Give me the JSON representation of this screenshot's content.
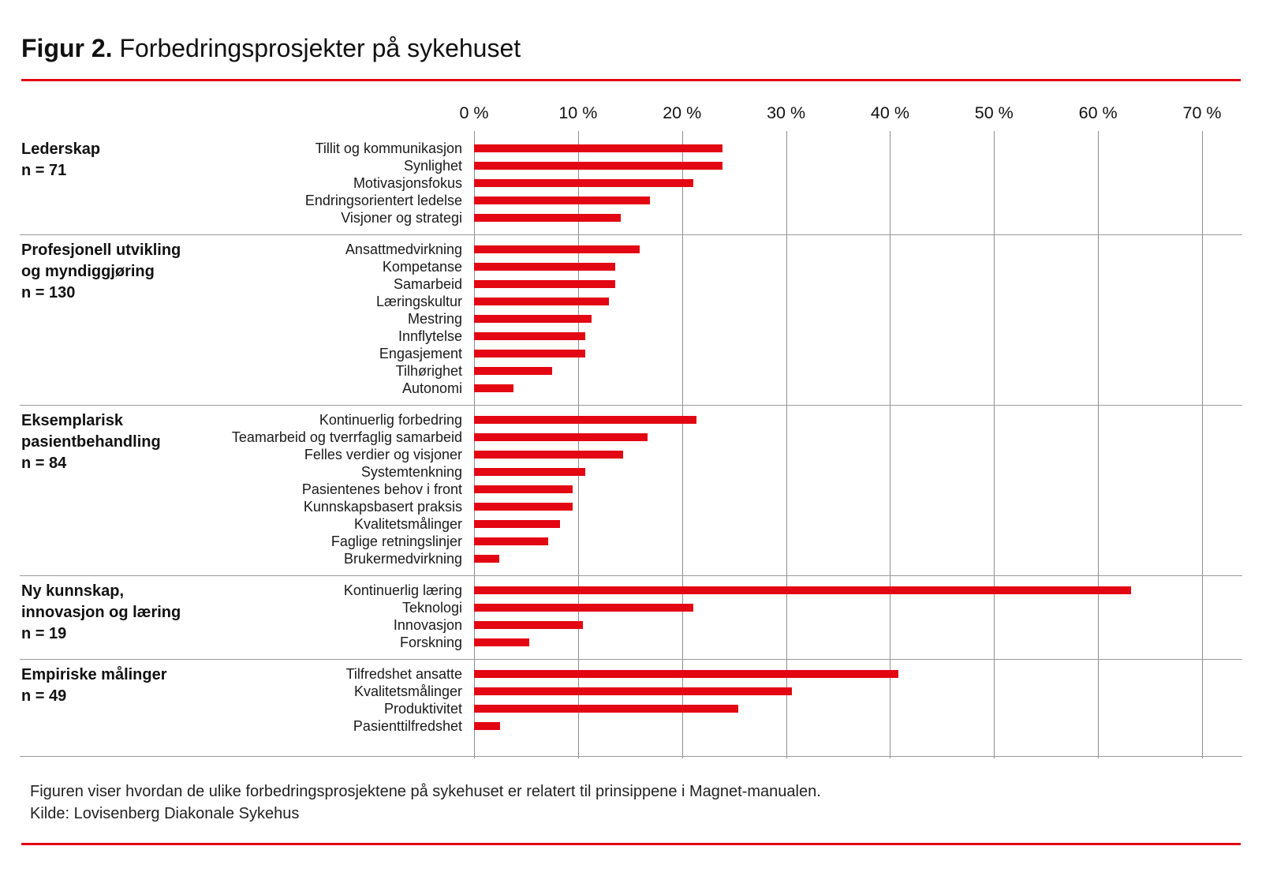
{
  "title": {
    "prefix": "Figur 2.",
    "text": " Forbedringsprosjekter på sykehuset"
  },
  "footer": {
    "line1": "Figuren viser hvordan de ulike forbedringsprosjektene på sykehuset er relatert til prinsippene i Magnet-manualen.",
    "line2": "Kilde: Lovisenberg Diakonale Sykehus"
  },
  "colors": {
    "bar": "#e30613",
    "accent_rule": "#e30613",
    "gridline": "#8f8f8f",
    "separator": "#9a9a9a",
    "text": "#111111"
  },
  "chart_data": {
    "type": "bar",
    "orientation": "horizontal",
    "unit": "%",
    "title": "Figur 2. Forbedringsprosjekter på sykehuset",
    "xlabel": "",
    "ylabel": "",
    "xlim": [
      0,
      70
    ],
    "grid": true,
    "x_ticks": [
      0,
      10,
      20,
      30,
      40,
      50,
      60,
      70
    ],
    "x_tick_labels": [
      "0 %",
      "10 %",
      "20 %",
      "30 %",
      "40 %",
      "50 %",
      "60 %",
      "70 %"
    ],
    "groups": [
      {
        "name": "Lederskap",
        "name_lines": [
          "Lederskap"
        ],
        "n": 71,
        "n_label": "n = 71",
        "items": [
          {
            "label": "Tillit og kommunikasjon",
            "value": 23.9
          },
          {
            "label": "Synlighet",
            "value": 23.9
          },
          {
            "label": "Motivasjonsfokus",
            "value": 21.1
          },
          {
            "label": "Endringsorientert ledelse",
            "value": 16.9
          },
          {
            "label": "Visjoner og strategi",
            "value": 14.1
          }
        ]
      },
      {
        "name": "Profesjonell utvikling og myndiggjøring",
        "name_lines": [
          "Profesjonell utvikling",
          "og myndiggjøring"
        ],
        "n": 130,
        "n_label": "n = 130",
        "items": [
          {
            "label": "Ansattmedvirkning",
            "value": 15.9
          },
          {
            "label": "Kompetanse",
            "value": 13.6
          },
          {
            "label": "Samarbeid",
            "value": 13.6
          },
          {
            "label": "Læringskultur",
            "value": 13.0
          },
          {
            "label": "Mestring",
            "value": 11.3
          },
          {
            "label": "Innflytelse",
            "value": 10.7
          },
          {
            "label": "Engasjement",
            "value": 10.7
          },
          {
            "label": "Tilhørighet",
            "value": 7.5
          },
          {
            "label": "Autonomi",
            "value": 3.8
          }
        ]
      },
      {
        "name": "Eksemplarisk pasientbehandling",
        "name_lines": [
          "Eksemplarisk",
          "pasientbehandling"
        ],
        "n": 84,
        "n_label": "n = 84",
        "items": [
          {
            "label": "Kontinuerlig forbedring",
            "value": 21.4
          },
          {
            "label": "Teamarbeid og tverrfaglig samarbeid",
            "value": 16.7
          },
          {
            "label": "Felles verdier og visjoner",
            "value": 14.3
          },
          {
            "label": "Systemtenkning",
            "value": 10.7
          },
          {
            "label": "Pasientenes behov i front",
            "value": 9.5
          },
          {
            "label": "Kunnskapsbasert praksis",
            "value": 9.5
          },
          {
            "label": "Kvalitetsmålinger",
            "value": 8.3
          },
          {
            "label": "Faglige retningslinjer",
            "value": 7.1
          },
          {
            "label": "Brukermedvirkning",
            "value": 2.4
          }
        ]
      },
      {
        "name": "Ny kunnskap, innovasjon og læring",
        "name_lines": [
          "Ny kunnskap,",
          "innovasjon og læring"
        ],
        "n": 19,
        "n_label": "n = 19",
        "items": [
          {
            "label": "Kontinuerlig læring",
            "value": 63.2
          },
          {
            "label": "Teknologi",
            "value": 21.1
          },
          {
            "label": "Innovasjon",
            "value": 10.5
          },
          {
            "label": "Forskning",
            "value": 5.3
          }
        ]
      },
      {
        "name": "Empiriske målinger",
        "name_lines": [
          "Empiriske målinger"
        ],
        "n": 49,
        "n_label": "n = 49",
        "items": [
          {
            "label": "Tilfredshet ansatte",
            "value": 40.8
          },
          {
            "label": "Kvalitetsmålinger",
            "value": 30.6
          },
          {
            "label": "Produktivitet",
            "value": 25.4
          },
          {
            "label": "Pasienttilfredshet",
            "value": 2.5
          }
        ]
      }
    ]
  }
}
